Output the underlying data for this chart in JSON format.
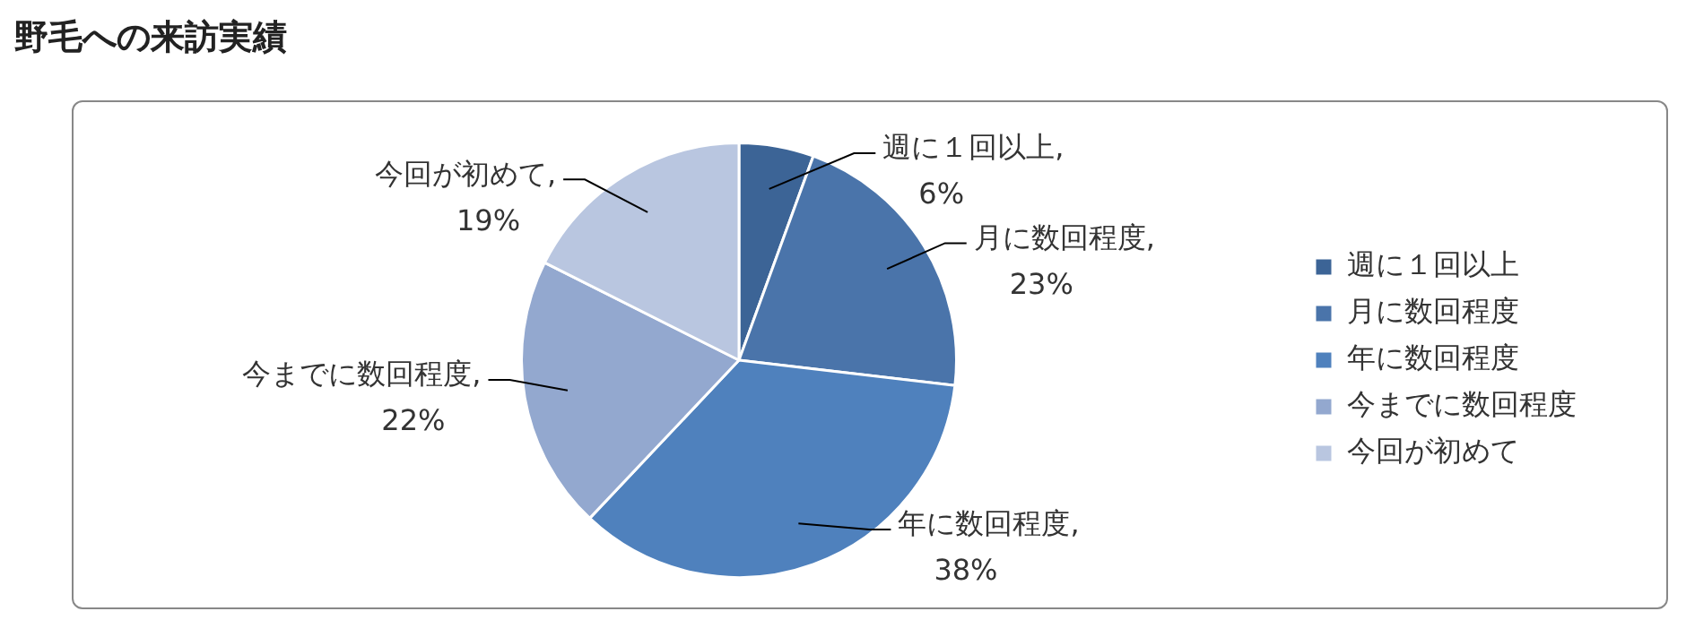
{
  "chart_data": {
    "type": "pie",
    "title": "野毛への来訪実績",
    "categories": [
      "週に１回以上",
      "月に数回程度",
      "年に数回程度",
      "今までに数回程度",
      "今回が初めて"
    ],
    "values": [
      6,
      23,
      38,
      22,
      19
    ],
    "value_labels": [
      ",\n6%",
      ",\n23%",
      ",\n38%",
      ",\n22%",
      ",\n19%"
    ],
    "colors": [
      "#3c6496",
      "#4a74aa",
      "#4f81bd",
      "#93a8cf",
      "#b9c6e0"
    ],
    "data_labels": true,
    "legend": "right"
  }
}
